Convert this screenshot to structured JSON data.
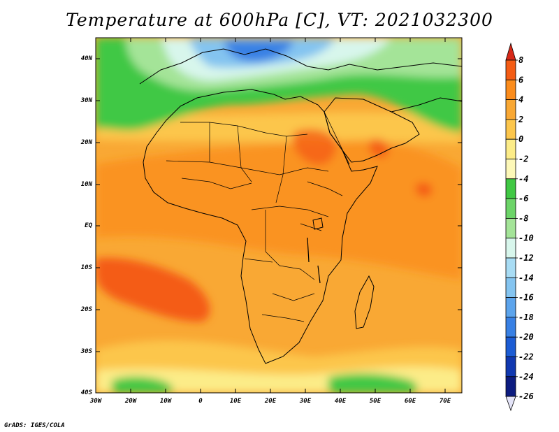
{
  "title": "Temperature at 600hPa [C], VT: 2021032300",
  "credit": "GrADS: IGES/COLA",
  "map": {
    "lat_labels": [
      "40N",
      "30N",
      "20N",
      "10N",
      "EQ",
      "10S",
      "20S",
      "30S",
      "40S"
    ],
    "lon_labels": [
      "30W",
      "20W",
      "10W",
      "0",
      "10E",
      "20E",
      "30E",
      "40E",
      "50E",
      "60E",
      "70E"
    ]
  },
  "colorbar": {
    "labels": [
      "8",
      "6",
      "4",
      "2",
      "0",
      "-2",
      "-4",
      "-6",
      "-8",
      "-10",
      "-12",
      "-14",
      "-16",
      "-18",
      "-20",
      "-22",
      "-24",
      "-26"
    ],
    "colors": [
      "#d72818",
      "#f45c14",
      "#fb8c1c",
      "#f9a834",
      "#fcc64c",
      "#fcec88",
      "#fdf8b8",
      "#40c844",
      "#6cd468",
      "#a4e498",
      "#d8f6ec",
      "#a8dcf4",
      "#84c4f0",
      "#5ca4ec",
      "#3880e4",
      "#1c5cd4",
      "#1038b0",
      "#0c1c80"
    ],
    "under_color": "#e4e4f8"
  },
  "colors": {
    "very_warm": "#f45c14",
    "warm": "#fb8c1c",
    "mild": "#f9a834",
    "cool": "#fcc64c",
    "pale": "#fcec88",
    "green": "#40c844",
    "light_green": "#a4e498",
    "cold": "#3880e4"
  }
}
